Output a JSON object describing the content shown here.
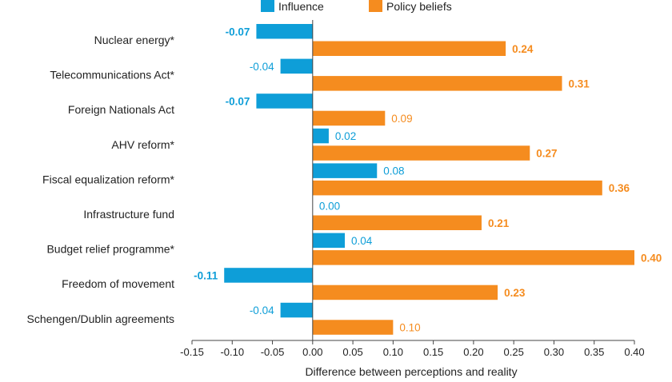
{
  "chart_data": {
    "type": "bar",
    "orientation": "horizontal",
    "categories": [
      "Nuclear energy*",
      "Telecommunications Act*",
      "Foreign Nationals Act",
      "AHV reform*",
      "Fiscal equalization reform*",
      "Infrastructure fund",
      "Budget relief programme*",
      "Freedom of movement",
      "Schengen/Dublin agreements"
    ],
    "series": [
      {
        "name": "Influence",
        "color": "#0e9ed8",
        "values": [
          -0.07,
          -0.04,
          -0.07,
          0.02,
          0.08,
          0.0,
          0.04,
          -0.11,
          -0.04
        ],
        "labels": [
          "-0.07",
          "-0.04",
          "-0.07",
          "0.02",
          "0.08",
          "0.00",
          "0.04",
          "-0.11",
          "-0.04"
        ],
        "bold": [
          true,
          false,
          true,
          false,
          false,
          false,
          false,
          true,
          false
        ]
      },
      {
        "name": "Policy beliefs",
        "color": "#f58c1f",
        "values": [
          0.24,
          0.31,
          0.09,
          0.27,
          0.36,
          0.21,
          0.4,
          0.23,
          0.1
        ],
        "labels": [
          "0.24",
          "0.31",
          "0.09",
          "0.27",
          "0.36",
          "0.21",
          "0.40",
          "0.23",
          "0.10"
        ],
        "bold": [
          true,
          true,
          false,
          true,
          true,
          true,
          true,
          true,
          false
        ]
      }
    ],
    "xlabel": "Difference between perceptions and reality",
    "xlim": [
      -0.15,
      0.4
    ],
    "xticks": [
      "-0.15",
      "-0.10",
      "-0.05",
      "0.00",
      "0.05",
      "0.10",
      "0.15",
      "0.20",
      "0.25",
      "0.30",
      "0.35",
      "0.40"
    ],
    "legend_position": "top",
    "grid": false
  }
}
